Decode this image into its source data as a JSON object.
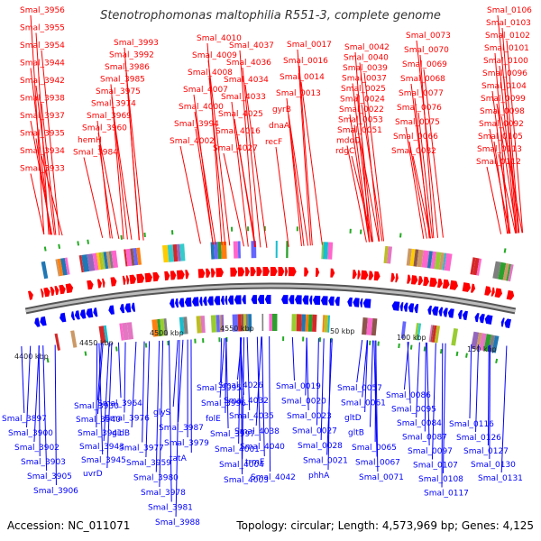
{
  "title": "Stenotrophomonas maltophilia R551-3, complete genome",
  "footer": {
    "accession": "Accession: NC_011071",
    "summary": "Topology: circular; Length: 4,573,969 bp; Genes: 4,125"
  },
  "colors": {
    "forward": "#ff0000",
    "reverse": "#0000ff",
    "backbone": "#777777",
    "marker": "#22aa22"
  },
  "scale_labels": [
    "4400 kbp",
    "4450 kbp",
    "4500 kbp",
    "4550 kbp",
    "50 kbp",
    "100 kbp",
    "150 kbp"
  ],
  "top_labels": [
    "Smal_3956",
    "Smal_3955",
    "Smal_3954",
    "Smal_3944",
    "Smal_3942",
    "Smal_3938",
    "Smal_3937",
    "Smal_3935",
    "Smal_3934",
    "Smal_3933",
    "Smal_3993",
    "Smal_3992",
    "Smal_3986",
    "Smal_3985",
    "Smal_3975",
    "Smal_3974",
    "Smal_3969",
    "Smal_3960",
    "hemH",
    "Smal_3984",
    "Smal_4010",
    "Smal_4009",
    "Smal_4008",
    "Smal_4007",
    "Smal_4000",
    "Smal_3994",
    "Smal_4002",
    "Smal_4037",
    "Smal_4036",
    "Smal_4034",
    "Smal_4033",
    "Smal_4025",
    "Smal_4016",
    "Smal_4027",
    "Smal_0017",
    "Smal_0016",
    "Smal_0014",
    "Smal_0013",
    "gyrB",
    "dnaA",
    "recF",
    "Smal_0042",
    "Smal_0040",
    "Smal_0039",
    "Smal_0037",
    "Smal_0025",
    "Smal_0024",
    "Smal_0022",
    "Smal_0053",
    "Smal_0051",
    "mdoD",
    "rdgC",
    "Smal_0073",
    "Smal_0070",
    "Smal_0069",
    "Smal_0068",
    "Smal_0077",
    "Smal_0076",
    "Smal_0075",
    "Smal_0066",
    "Smal_0082",
    "Smal_0106",
    "Smal_0103",
    "Smal_0102",
    "Smal_0101",
    "Smal_0100",
    "Smal_0096",
    "Smal_0104",
    "Smal_0099",
    "Smal_0098",
    "Smal_0092",
    "Smal_0105",
    "Smal_0113",
    "Smal_0112"
  ],
  "bottom_labels": [
    "Smal_3897",
    "Smal_3900",
    "Smal_3902",
    "Smal_3903",
    "Smal_3905",
    "Smal_3906",
    "Smal_3930",
    "Smal_3940",
    "Smal_3941",
    "Smal_3943",
    "Smal_3945",
    "uvrD",
    "Smal_3964",
    "Smal_3976",
    "gidB",
    "Smal_3977",
    "Smal_3959",
    "Smal_3980",
    "Smal_3978",
    "Smal_3981",
    "Smal_3988",
    "glyS",
    "Smal_3987",
    "Smal_3979",
    "tatA",
    "Smal_3995",
    "Smal_3996",
    "folE",
    "Smal_3997",
    "Smal_4001",
    "Smal_4004",
    "Smal_4003",
    "Smal_4026",
    "Smal_4032",
    "Smal_4035",
    "Smal_4038",
    "Smal_4040",
    "trmE",
    "Smal_4042",
    "Smal_0019",
    "Smal_0020",
    "Smal_0023",
    "Smal_0027",
    "Smal_0028",
    "Smal_0021",
    "phhA",
    "Smal_0057",
    "Smal_0061",
    "gltD",
    "gltB",
    "Smal_0065",
    "Smal_0067",
    "Smal_0071",
    "Smal_0086",
    "Smal_0095",
    "Smal_0084",
    "Smal_0087",
    "Smal_0097",
    "Smal_0107",
    "Smal_0108",
    "Smal_0117",
    "Smal_0116",
    "Smal_0126",
    "Smal_0127",
    "Smal_0130",
    "Smal_0131"
  ]
}
